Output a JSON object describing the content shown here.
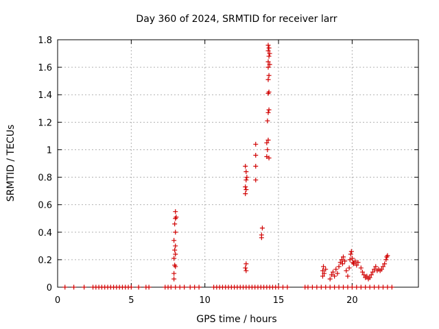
{
  "chart_data": {
    "type": "scatter",
    "title": "Day 360 of 2024, SRMTID for receiver larr",
    "xlabel": "GPS time / hours",
    "ylabel": "SRMTID / TECUs",
    "xlim": [
      0,
      24.5
    ],
    "ylim": [
      0,
      1.8
    ],
    "xticks": [
      0,
      5,
      10,
      15,
      20
    ],
    "xtick_labels": [
      "0",
      "5",
      "10",
      "15",
      "20"
    ],
    "yticks": [
      0,
      0.2,
      0.4,
      0.6,
      0.8,
      1.0,
      1.2,
      1.4,
      1.6,
      1.8
    ],
    "ytick_labels": [
      "0",
      "0.2",
      "0.4",
      "0.6",
      "0.8",
      "1",
      "1.2",
      "1.4",
      "1.6",
      "1.8"
    ],
    "grid": true,
    "marker": "+",
    "color": "#d00000",
    "series": [
      {
        "name": "SRMTID",
        "points": [
          [
            0.5,
            0
          ],
          [
            1.1,
            0
          ],
          [
            1.8,
            0
          ],
          [
            2.4,
            0
          ],
          [
            2.6,
            0
          ],
          [
            2.8,
            0
          ],
          [
            3.0,
            0
          ],
          [
            3.2,
            0
          ],
          [
            3.4,
            0
          ],
          [
            3.6,
            0
          ],
          [
            3.8,
            0
          ],
          [
            4.0,
            0
          ],
          [
            4.2,
            0
          ],
          [
            4.4,
            0
          ],
          [
            4.6,
            0
          ],
          [
            4.8,
            0
          ],
          [
            5.0,
            0
          ],
          [
            5.5,
            0
          ],
          [
            6.0,
            0
          ],
          [
            6.2,
            0
          ],
          [
            7.3,
            0
          ],
          [
            7.5,
            0
          ],
          [
            7.7,
            0
          ],
          [
            8.0,
            0
          ],
          [
            8.3,
            0
          ],
          [
            8.6,
            0
          ],
          [
            9.0,
            0
          ],
          [
            9.3,
            0
          ],
          [
            9.6,
            0
          ],
          [
            10.6,
            0
          ],
          [
            10.8,
            0
          ],
          [
            11.0,
            0
          ],
          [
            11.2,
            0
          ],
          [
            11.4,
            0
          ],
          [
            11.6,
            0
          ],
          [
            11.8,
            0
          ],
          [
            12.0,
            0
          ],
          [
            12.2,
            0
          ],
          [
            12.4,
            0
          ],
          [
            12.6,
            0
          ],
          [
            12.8,
            0
          ],
          [
            13.0,
            0
          ],
          [
            13.2,
            0
          ],
          [
            13.4,
            0
          ],
          [
            13.6,
            0
          ],
          [
            13.8,
            0
          ],
          [
            14.0,
            0
          ],
          [
            14.2,
            0
          ],
          [
            14.4,
            0
          ],
          [
            14.6,
            0
          ],
          [
            14.8,
            0
          ],
          [
            15.0,
            0
          ],
          [
            15.3,
            0
          ],
          [
            15.6,
            0
          ],
          [
            16.8,
            0
          ],
          [
            17.0,
            0
          ],
          [
            17.3,
            0
          ],
          [
            17.6,
            0
          ],
          [
            17.9,
            0
          ],
          [
            18.2,
            0
          ],
          [
            18.5,
            0
          ],
          [
            18.8,
            0
          ],
          [
            19.1,
            0
          ],
          [
            19.4,
            0
          ],
          [
            19.7,
            0
          ],
          [
            20.0,
            0
          ],
          [
            20.3,
            0
          ],
          [
            20.6,
            0
          ],
          [
            20.9,
            0
          ],
          [
            21.2,
            0
          ],
          [
            21.5,
            0
          ],
          [
            21.8,
            0
          ],
          [
            22.1,
            0
          ],
          [
            22.4,
            0
          ],
          [
            22.7,
            0
          ],
          [
            7.9,
            0.06
          ],
          [
            7.9,
            0.1
          ],
          [
            8.0,
            0.15
          ],
          [
            7.95,
            0.16
          ],
          [
            7.9,
            0.21
          ],
          [
            8.0,
            0.24
          ],
          [
            7.95,
            0.27
          ],
          [
            8.0,
            0.3
          ],
          [
            7.9,
            0.34
          ],
          [
            8.0,
            0.4
          ],
          [
            7.95,
            0.46
          ],
          [
            8.0,
            0.5
          ],
          [
            8.05,
            0.51
          ],
          [
            8.0,
            0.55
          ],
          [
            12.75,
            0.68
          ],
          [
            12.8,
            0.71
          ],
          [
            12.75,
            0.73
          ],
          [
            12.8,
            0.78
          ],
          [
            12.85,
            0.8
          ],
          [
            12.8,
            0.84
          ],
          [
            12.75,
            0.88
          ],
          [
            12.8,
            0.12
          ],
          [
            12.75,
            0.14
          ],
          [
            12.8,
            0.17
          ],
          [
            13.45,
            0.78
          ],
          [
            13.45,
            0.88
          ],
          [
            13.45,
            0.96
          ],
          [
            13.45,
            1.04
          ],
          [
            13.85,
            0.36
          ],
          [
            13.85,
            0.38
          ],
          [
            13.9,
            0.43
          ],
          [
            14.2,
            0.95
          ],
          [
            14.25,
            1.0
          ],
          [
            14.2,
            1.05
          ],
          [
            14.3,
            1.07
          ],
          [
            14.35,
            0.94
          ],
          [
            14.25,
            1.21
          ],
          [
            14.3,
            1.27
          ],
          [
            14.35,
            1.29
          ],
          [
            14.3,
            1.41
          ],
          [
            14.35,
            1.42
          ],
          [
            14.3,
            1.51
          ],
          [
            14.35,
            1.54
          ],
          [
            14.3,
            1.6
          ],
          [
            14.4,
            1.62
          ],
          [
            14.3,
            1.64
          ],
          [
            14.35,
            1.68
          ],
          [
            14.4,
            1.7
          ],
          [
            14.3,
            1.72
          ],
          [
            14.35,
            1.74
          ],
          [
            14.3,
            1.76
          ],
          [
            18.0,
            0.12
          ],
          [
            18.1,
            0.1
          ],
          [
            18.05,
            0.15
          ],
          [
            18.0,
            0.08
          ],
          [
            18.2,
            0.13
          ],
          [
            18.5,
            0.06
          ],
          [
            18.6,
            0.09
          ],
          [
            18.7,
            0.11
          ],
          [
            18.8,
            0.08
          ],
          [
            18.9,
            0.13
          ],
          [
            19.0,
            0.1
          ],
          [
            19.1,
            0.15
          ],
          [
            19.2,
            0.18
          ],
          [
            19.3,
            0.2
          ],
          [
            19.35,
            0.17
          ],
          [
            19.4,
            0.22
          ],
          [
            19.5,
            0.19
          ],
          [
            19.6,
            0.12
          ],
          [
            19.7,
            0.08
          ],
          [
            19.8,
            0.14
          ],
          [
            19.85,
            0.2
          ],
          [
            19.9,
            0.24
          ],
          [
            19.95,
            0.26
          ],
          [
            20.0,
            0.21
          ],
          [
            20.05,
            0.18
          ],
          [
            20.1,
            0.17
          ],
          [
            20.2,
            0.19
          ],
          [
            20.3,
            0.16
          ],
          [
            20.4,
            0.18
          ],
          [
            20.6,
            0.14
          ],
          [
            20.7,
            0.11
          ],
          [
            20.8,
            0.09
          ],
          [
            20.9,
            0.07
          ],
          [
            21.0,
            0.08
          ],
          [
            21.1,
            0.06
          ],
          [
            21.2,
            0.07
          ],
          [
            21.3,
            0.09
          ],
          [
            21.4,
            0.11
          ],
          [
            21.5,
            0.13
          ],
          [
            21.6,
            0.15
          ],
          [
            21.7,
            0.12
          ],
          [
            21.8,
            0.13
          ],
          [
            21.9,
            0.12
          ],
          [
            22.0,
            0.13
          ],
          [
            22.1,
            0.15
          ],
          [
            22.2,
            0.17
          ],
          [
            22.3,
            0.2
          ],
          [
            22.35,
            0.22
          ],
          [
            22.4,
            0.23
          ]
        ]
      }
    ]
  }
}
